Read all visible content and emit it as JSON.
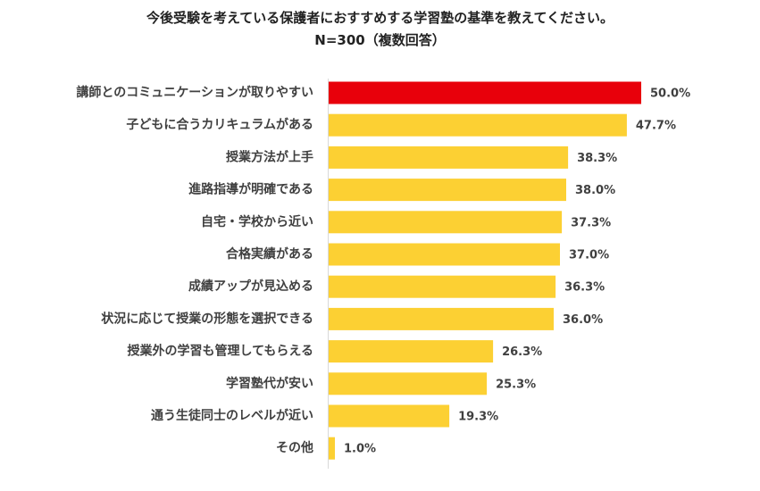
{
  "chart_data": {
    "type": "bar",
    "orientation": "horizontal",
    "title": "今後受験を考えている保護者におすすめする学習塾の基準を教えてください。",
    "subtitle": "N=300（複数回答）",
    "categories": [
      "講師とのコミュニケーションが取りやすい",
      "子どもに合うカリキュラムがある",
      "授業方法が上手",
      "進路指導が明確である",
      "自宅・学校から近い",
      "合格実績がある",
      "成績アップが見込める",
      "状況に応じて授業の形態を選択できる",
      "授業外の学習も管理してもらえる",
      "学習塾代が安い",
      "通う生徒同士のレベルが近い",
      "その他"
    ],
    "values": [
      50.0,
      47.7,
      38.3,
      38.0,
      37.3,
      37.0,
      36.3,
      36.0,
      26.3,
      25.3,
      19.3,
      1.0
    ],
    "value_labels": [
      "50.0%",
      "47.7%",
      "38.3%",
      "38.0%",
      "37.3%",
      "37.0%",
      "36.3%",
      "36.0%",
      "26.3%",
      "25.3%",
      "19.3%",
      "1.0%"
    ],
    "unit": "%",
    "xlim": [
      0,
      50
    ],
    "grid": false,
    "legend": "none",
    "colors": {
      "highlight": "#e8000b",
      "default": "#fcd033",
      "axis": "#d9d9d9",
      "text": "#404040"
    }
  }
}
